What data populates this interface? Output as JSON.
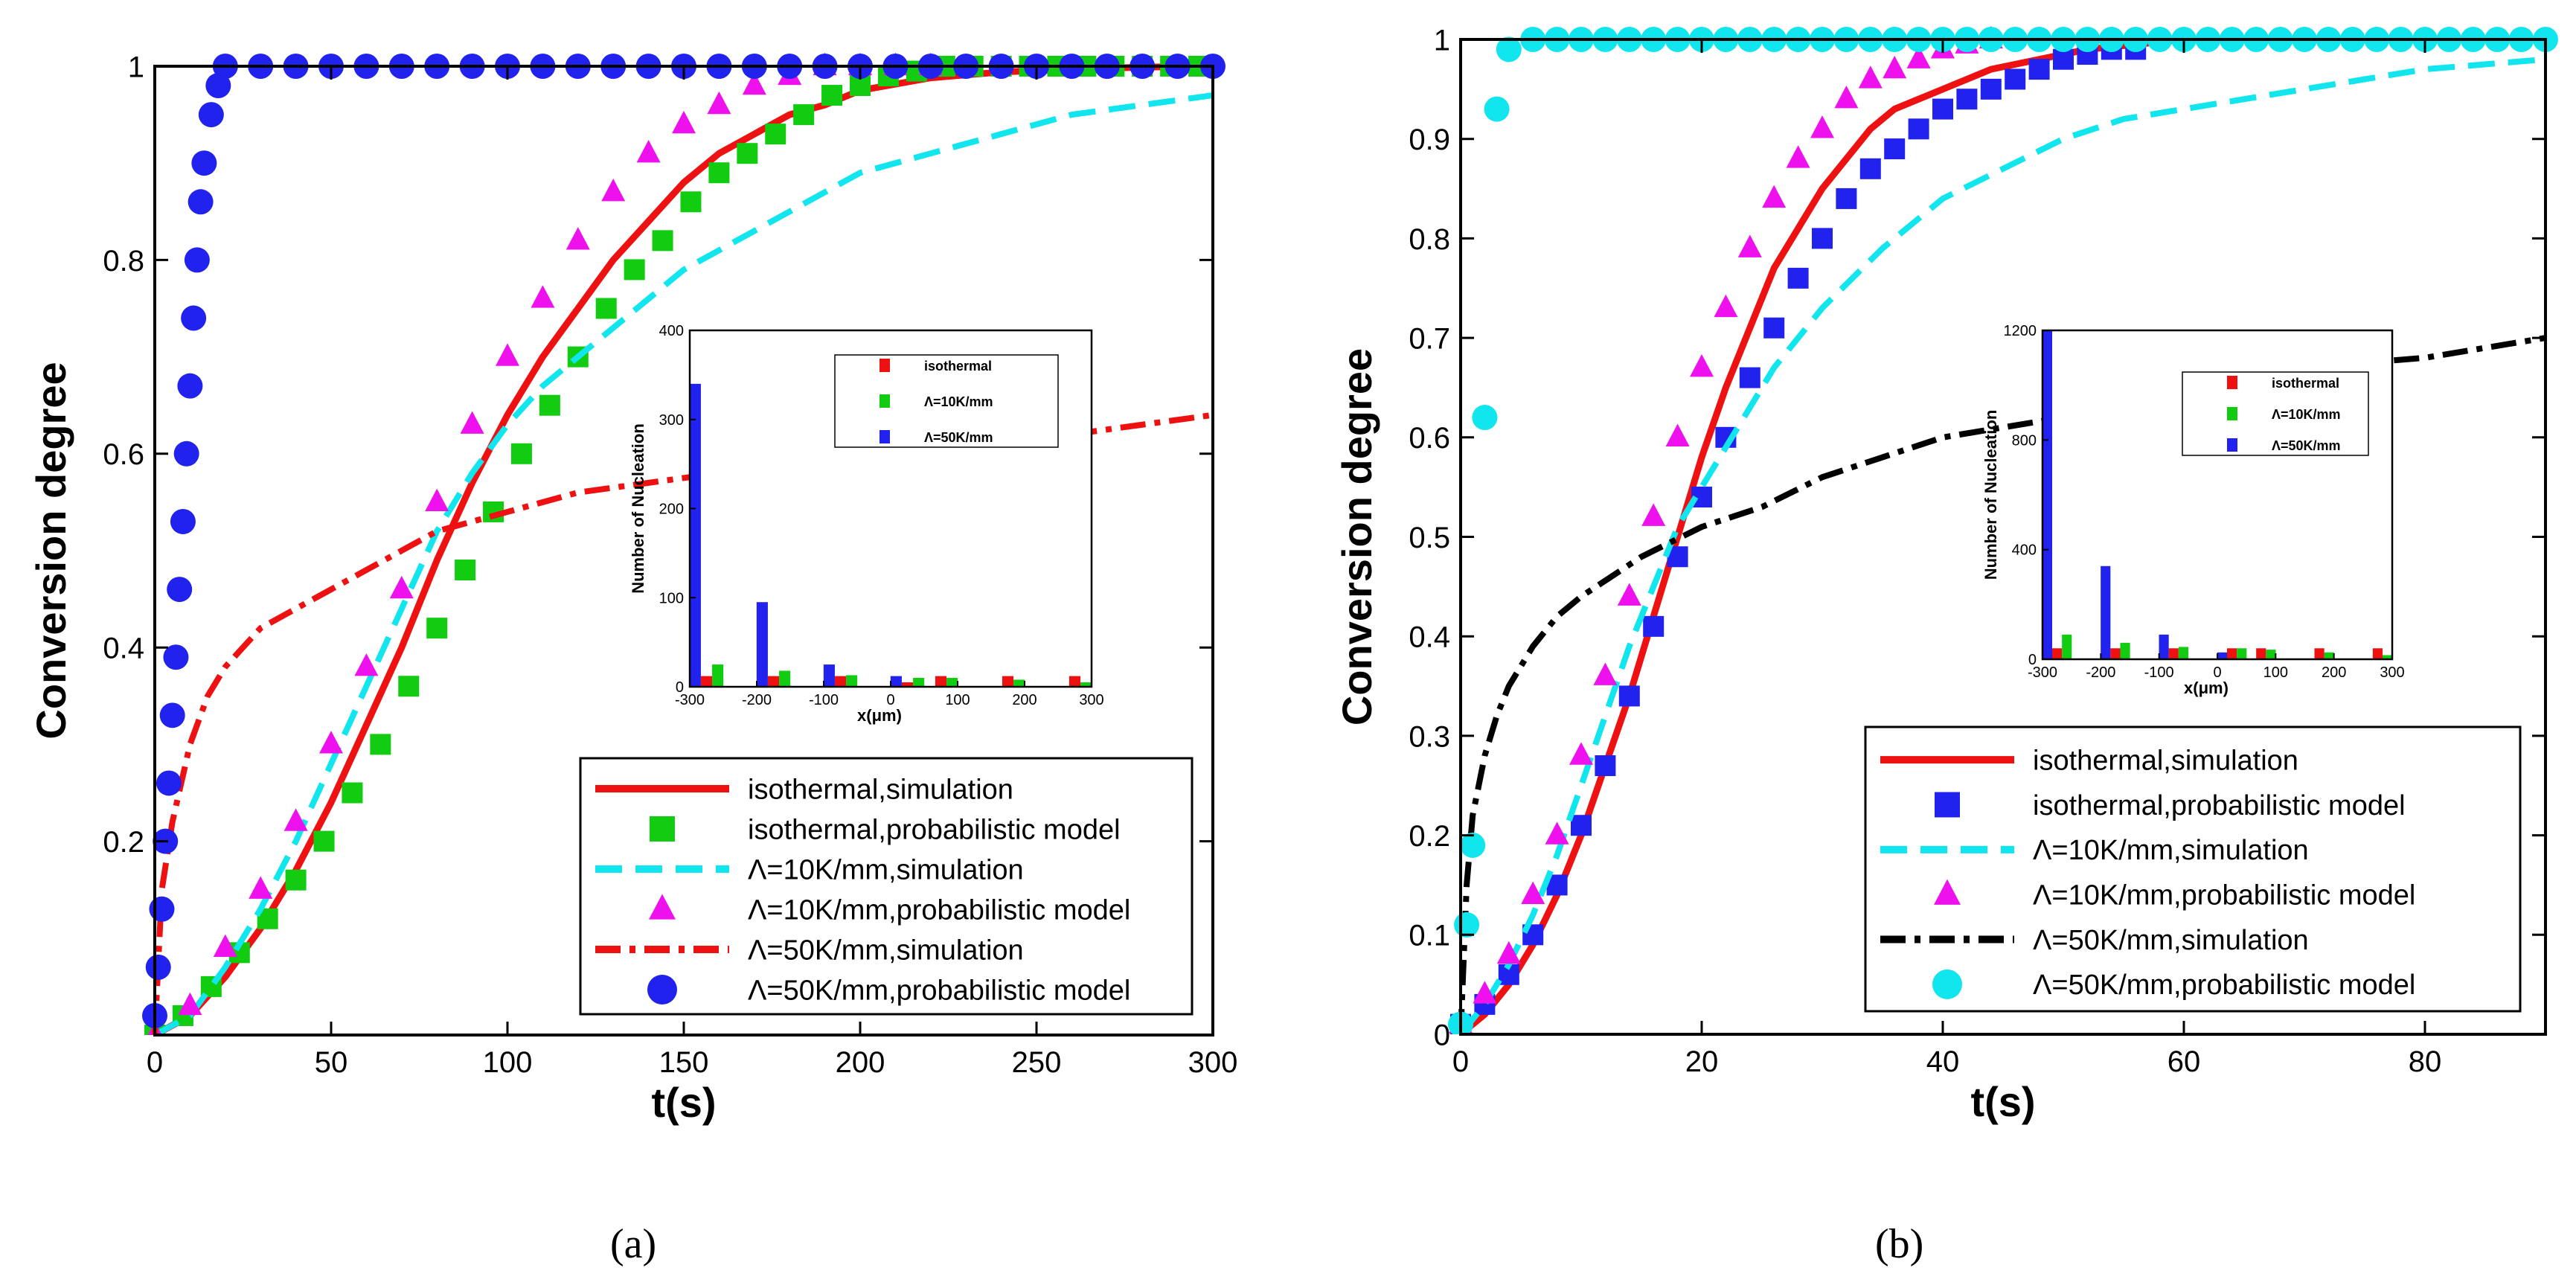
{
  "figure": {
    "caption_a": "(a)",
    "caption_b": "(b)"
  },
  "colors": {
    "red": "#ee1111",
    "green": "#11cc11",
    "cyan": "#11e5ee",
    "magenta": "#ee11ee",
    "blue": "#2222ee",
    "black": "#000000"
  },
  "chart_data": [
    {
      "id": "a",
      "type": "line",
      "xlabel": "t(s)",
      "ylabel": "Conversion degree",
      "xlim": [
        0,
        300
      ],
      "ylim": [
        0,
        1
      ],
      "xticks": [
        0,
        50,
        100,
        150,
        200,
        250,
        300
      ],
      "yticks": [
        0.2,
        0.4,
        0.6,
        0.8,
        1
      ],
      "legend_position": "bottom-right",
      "series": [
        {
          "name": "isothermal,simulation",
          "style": "solid",
          "color": "red",
          "x": [
            0,
            10,
            20,
            30,
            40,
            50,
            60,
            70,
            80,
            90,
            100,
            110,
            120,
            130,
            140,
            150,
            160,
            170,
            180,
            190,
            200,
            220,
            240,
            260,
            280,
            300
          ],
          "y": [
            0,
            0.02,
            0.06,
            0.11,
            0.17,
            0.24,
            0.32,
            0.4,
            0.49,
            0.57,
            0.64,
            0.7,
            0.75,
            0.8,
            0.84,
            0.88,
            0.91,
            0.93,
            0.95,
            0.96,
            0.975,
            0.988,
            0.994,
            0.997,
            0.999,
            1
          ]
        },
        {
          "name": "isothermal,probabilistic model",
          "style": "marker",
          "marker": "square",
          "color": "green",
          "x": [
            0,
            8,
            16,
            24,
            32,
            40,
            48,
            56,
            64,
            72,
            80,
            88,
            96,
            104,
            112,
            120,
            128,
            136,
            144,
            152,
            160,
            168,
            176,
            184,
            192,
            200,
            208,
            216,
            224,
            232,
            240,
            248,
            256,
            264,
            272,
            280,
            288,
            296
          ],
          "y": [
            0,
            0.02,
            0.05,
            0.085,
            0.12,
            0.16,
            0.2,
            0.25,
            0.3,
            0.36,
            0.42,
            0.48,
            0.54,
            0.6,
            0.65,
            0.7,
            0.75,
            0.79,
            0.82,
            0.86,
            0.89,
            0.91,
            0.93,
            0.95,
            0.97,
            0.98,
            0.99,
            0.995,
            1,
            1,
            1,
            1,
            1,
            1,
            1,
            1,
            1,
            1
          ]
        },
        {
          "name": "Λ=10K/mm,simulation",
          "style": "dashed",
          "color": "cyan",
          "x": [
            0,
            10,
            20,
            30,
            40,
            50,
            60,
            70,
            80,
            90,
            100,
            110,
            120,
            130,
            140,
            150,
            160,
            170,
            180,
            190,
            200,
            220,
            240,
            260,
            280,
            300
          ],
          "y": [
            0,
            0.02,
            0.07,
            0.13,
            0.2,
            0.28,
            0.36,
            0.44,
            0.52,
            0.58,
            0.63,
            0.67,
            0.7,
            0.73,
            0.76,
            0.79,
            0.81,
            0.83,
            0.85,
            0.87,
            0.89,
            0.91,
            0.93,
            0.95,
            0.96,
            0.97
          ]
        },
        {
          "name": "Λ=10K/mm,probabilistic model",
          "style": "marker",
          "marker": "triangle",
          "color": "magenta",
          "x": [
            0,
            10,
            20,
            30,
            40,
            50,
            60,
            70,
            80,
            90,
            100,
            110,
            120,
            130,
            140,
            150,
            160,
            170,
            180,
            190,
            200,
            210,
            220
          ],
          "y": [
            0,
            0.03,
            0.09,
            0.15,
            0.22,
            0.3,
            0.38,
            0.46,
            0.55,
            0.63,
            0.7,
            0.76,
            0.82,
            0.87,
            0.91,
            0.94,
            0.96,
            0.98,
            0.99,
            1,
            1,
            1,
            1
          ]
        },
        {
          "name": "Λ=50K/mm,simulation",
          "style": "dashdot",
          "color": "red",
          "x": [
            0,
            2,
            5,
            10,
            15,
            20,
            30,
            40,
            50,
            60,
            70,
            80,
            90,
            100,
            120,
            140,
            160,
            180,
            200,
            220,
            240,
            260,
            280,
            300
          ],
          "y": [
            0,
            0.15,
            0.22,
            0.3,
            0.35,
            0.38,
            0.42,
            0.44,
            0.46,
            0.48,
            0.5,
            0.52,
            0.53,
            0.54,
            0.56,
            0.57,
            0.58,
            0.59,
            0.6,
            0.61,
            0.62,
            0.62,
            0.63,
            0.64
          ]
        },
        {
          "name": "Λ=50K/mm,probabilistic model",
          "style": "marker",
          "marker": "circle",
          "color": "blue",
          "x": [
            0,
            1,
            2,
            3,
            4,
            5,
            6,
            7,
            8,
            9,
            10,
            11,
            12,
            13,
            14,
            16,
            18,
            20,
            30,
            40,
            50,
            60,
            70,
            80,
            90,
            100,
            110,
            120,
            130,
            140,
            150,
            160,
            170,
            180,
            190,
            200,
            210,
            220,
            230,
            240,
            250,
            260,
            270,
            280,
            290,
            300
          ],
          "y": [
            0.02,
            0.07,
            0.13,
            0.2,
            0.26,
            0.33,
            0.39,
            0.46,
            0.53,
            0.6,
            0.67,
            0.74,
            0.8,
            0.86,
            0.9,
            0.95,
            0.98,
            1,
            1,
            1,
            1,
            1,
            1,
            1,
            1,
            1,
            1,
            1,
            1,
            1,
            1,
            1,
            1,
            1,
            1,
            1,
            1,
            1,
            1,
            1,
            1,
            1,
            1,
            1,
            1,
            1
          ]
        }
      ],
      "inset": {
        "type": "bar",
        "xlabel": "x(μm)",
        "ylabel": "Number of Nucleation",
        "xlim": [
          -300,
          300
        ],
        "ylim": [
          0,
          400
        ],
        "xticks": [
          -300,
          -200,
          -100,
          0,
          100,
          200,
          300
        ],
        "yticks": [
          0,
          100,
          200,
          300,
          400
        ],
        "categories": [
          -275,
          -175,
          -75,
          25,
          75,
          175,
          275
        ],
        "series": [
          {
            "name": "isothermal",
            "color": "red",
            "values": [
              12,
              12,
              12,
              5,
              12,
              12,
              12
            ]
          },
          {
            "name": "Λ=10K/mm",
            "color": "green",
            "values": [
              25,
              18,
              13,
              10,
              10,
              8,
              5
            ]
          },
          {
            "name": "Λ=50K/mm",
            "color": "blue",
            "values": [
              340,
              95,
              25,
              12,
              0,
              0,
              0
            ]
          }
        ]
      }
    },
    {
      "id": "b",
      "type": "line",
      "xlabel": "t(s)",
      "ylabel": "Conversion degree",
      "xlim": [
        0,
        90
      ],
      "ylim": [
        0,
        1
      ],
      "xticks": [
        0,
        20,
        40,
        60,
        80
      ],
      "yticks": [
        0,
        0.1,
        0.2,
        0.3,
        0.4,
        0.5,
        0.6,
        0.7,
        0.8,
        0.9,
        1
      ],
      "legend_position": "bottom-right",
      "series": [
        {
          "name": "isothermal,simulation",
          "style": "solid",
          "color": "red",
          "x": [
            0,
            2,
            4,
            6,
            8,
            10,
            12,
            14,
            16,
            18,
            20,
            22,
            24,
            26,
            28,
            30,
            32,
            34,
            36,
            38,
            40,
            44,
            48,
            52,
            56,
            60,
            70,
            80,
            90
          ],
          "y": [
            0,
            0.02,
            0.05,
            0.09,
            0.14,
            0.2,
            0.27,
            0.34,
            0.42,
            0.5,
            0.58,
            0.65,
            0.71,
            0.77,
            0.81,
            0.85,
            0.88,
            0.91,
            0.93,
            0.94,
            0.95,
            0.97,
            0.98,
            0.99,
            0.995,
            1,
            1,
            1,
            1
          ]
        },
        {
          "name": "isothermal,probabilistic model",
          "style": "marker",
          "marker": "square",
          "color": "blue",
          "x": [
            0,
            2,
            4,
            6,
            8,
            10,
            12,
            14,
            16,
            18,
            20,
            22,
            24,
            26,
            28,
            30,
            32,
            34,
            36,
            38,
            40,
            42,
            44,
            46,
            48,
            50,
            52,
            54,
            56
          ],
          "y": [
            0.01,
            0.03,
            0.06,
            0.1,
            0.15,
            0.21,
            0.27,
            0.34,
            0.41,
            0.48,
            0.54,
            0.6,
            0.66,
            0.71,
            0.76,
            0.8,
            0.84,
            0.87,
            0.89,
            0.91,
            0.93,
            0.94,
            0.95,
            0.96,
            0.97,
            0.98,
            0.985,
            0.99,
            0.99
          ]
        },
        {
          "name": "Λ=10K/mm,simulation",
          "style": "dashed",
          "color": "cyan",
          "x": [
            0,
            2,
            4,
            6,
            8,
            10,
            12,
            14,
            16,
            18,
            20,
            22,
            24,
            26,
            28,
            30,
            35,
            40,
            45,
            50,
            55,
            60,
            70,
            80,
            90
          ],
          "y": [
            0,
            0.03,
            0.07,
            0.12,
            0.18,
            0.25,
            0.32,
            0.39,
            0.45,
            0.51,
            0.55,
            0.59,
            0.63,
            0.67,
            0.7,
            0.73,
            0.79,
            0.84,
            0.87,
            0.9,
            0.92,
            0.93,
            0.95,
            0.97,
            0.98
          ]
        },
        {
          "name": "Λ=10K/mm,probabilistic model",
          "style": "marker",
          "marker": "triangle",
          "color": "magenta",
          "x": [
            0,
            2,
            4,
            6,
            8,
            10,
            12,
            14,
            16,
            18,
            20,
            22,
            24,
            26,
            28,
            30,
            32,
            34,
            36,
            38,
            40,
            42,
            44
          ],
          "y": [
            0.01,
            0.04,
            0.08,
            0.14,
            0.2,
            0.28,
            0.36,
            0.44,
            0.52,
            0.6,
            0.67,
            0.73,
            0.79,
            0.84,
            0.88,
            0.91,
            0.94,
            0.96,
            0.97,
            0.98,
            0.99,
            0.995,
            1
          ]
        },
        {
          "name": "Λ=50K/mm,simulation",
          "style": "dashdot",
          "color": "black",
          "x": [
            0,
            0.5,
            1,
            2,
            3,
            4,
            6,
            8,
            10,
            15,
            20,
            25,
            30,
            35,
            40,
            45,
            50,
            55,
            60,
            70,
            80,
            90
          ],
          "y": [
            0,
            0.15,
            0.22,
            0.28,
            0.32,
            0.35,
            0.39,
            0.42,
            0.44,
            0.48,
            0.51,
            0.53,
            0.56,
            0.58,
            0.6,
            0.61,
            0.62,
            0.63,
            0.65,
            0.67,
            0.68,
            0.7
          ]
        },
        {
          "name": "Λ=50K/mm,probabilistic model",
          "style": "marker",
          "marker": "circle",
          "color": "cyan",
          "x": [
            0,
            0.5,
            1,
            2,
            3,
            4,
            6,
            8,
            10,
            12,
            14,
            16,
            18,
            20,
            22,
            24,
            26,
            28,
            30,
            32,
            34,
            36,
            38,
            40,
            42,
            44,
            46,
            48,
            50,
            52,
            54,
            56,
            58,
            60,
            62,
            64,
            66,
            68,
            70,
            72,
            74,
            76,
            78,
            80,
            82,
            84,
            86,
            88,
            90
          ],
          "y": [
            0.01,
            0.11,
            0.19,
            0.62,
            0.93,
            0.99,
            1,
            1,
            1,
            1,
            1,
            1,
            1,
            1,
            1,
            1,
            1,
            1,
            1,
            1,
            1,
            1,
            1,
            1,
            1,
            1,
            1,
            1,
            1,
            1,
            1,
            1,
            1,
            1,
            1,
            1,
            1,
            1,
            1,
            1,
            1,
            1,
            1,
            1,
            1,
            1,
            1,
            1,
            1
          ]
        }
      ],
      "inset": {
        "type": "bar",
        "xlabel": "x(μm)",
        "ylabel": "Number of Nucleation",
        "xlim": [
          -300,
          300
        ],
        "ylim": [
          0,
          1200
        ],
        "xticks": [
          -300,
          -200,
          -100,
          0,
          100,
          200,
          300
        ],
        "yticks": [
          0,
          400,
          800,
          1200
        ],
        "categories": [
          -275,
          -175,
          -75,
          25,
          75,
          175,
          275
        ],
        "series": [
          {
            "name": "isothermal",
            "color": "red",
            "values": [
              40,
              40,
              40,
              40,
              40,
              40,
              40
            ]
          },
          {
            "name": "Λ=10K/mm",
            "color": "green",
            "values": [
              90,
              60,
              45,
              40,
              35,
              25,
              15
            ]
          },
          {
            "name": "Λ=50K/mm",
            "color": "blue",
            "values": [
              1220,
              340,
              90,
              25,
              0,
              0,
              0
            ]
          }
        ]
      }
    }
  ]
}
